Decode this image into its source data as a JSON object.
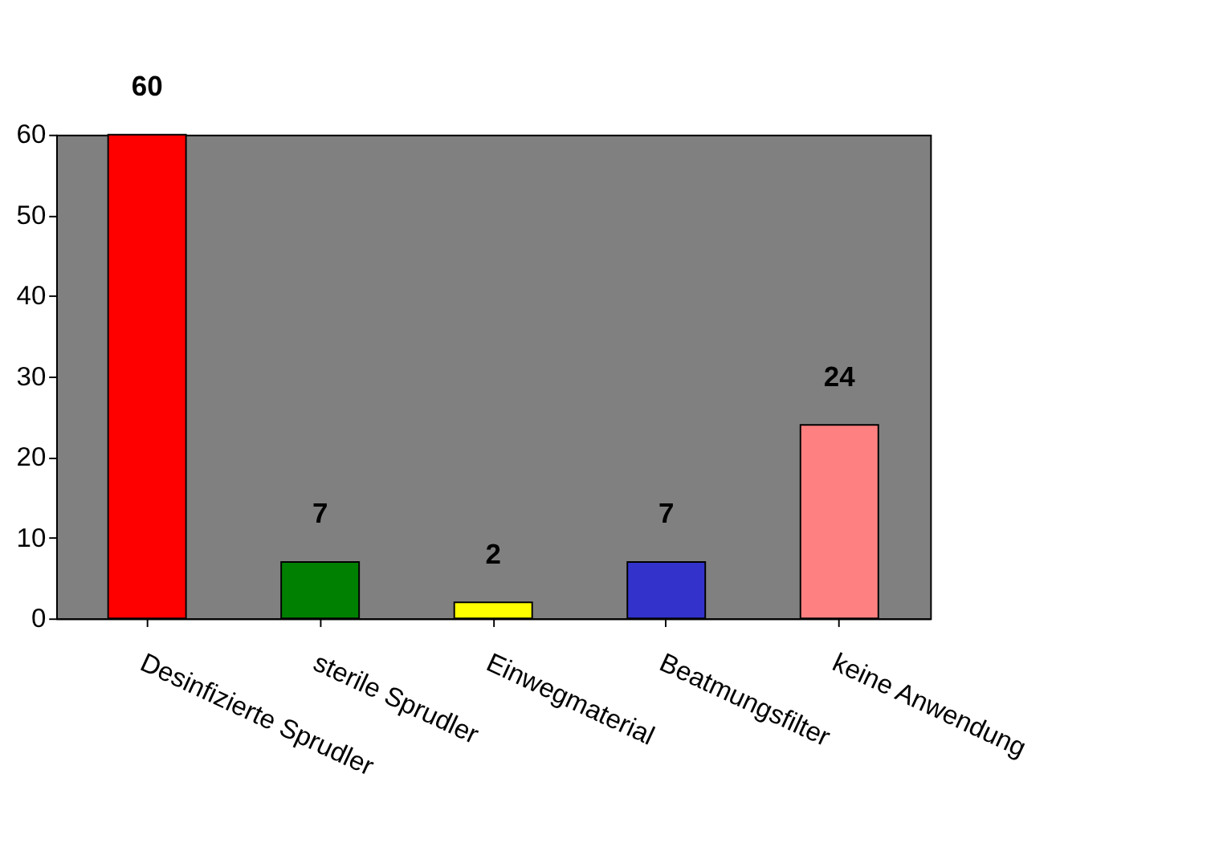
{
  "chart_data": {
    "type": "bar",
    "categories": [
      "Desinfizierte Sprudler",
      "sterile Sprudler",
      "Einwegmaterial",
      "Beatmungsfilter",
      "keine Anwendung"
    ],
    "values": [
      60,
      7,
      2,
      7,
      24
    ],
    "colors": [
      "#ff0000",
      "#008000",
      "#ffff00",
      "#3333cc",
      "#ff8080"
    ],
    "ylim": [
      0,
      60
    ],
    "yticks": [
      0,
      10,
      20,
      30,
      40,
      50,
      60
    ],
    "data_labels": true,
    "grid": false
  }
}
